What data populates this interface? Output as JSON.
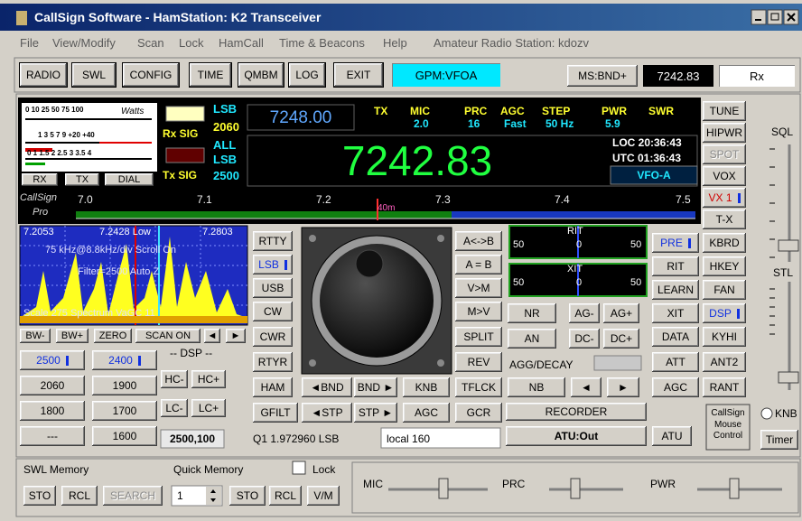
{
  "title": "CallSign Software - HamStation: K2 Transceiver",
  "menu": [
    "File",
    "View/Modify",
    "Scan",
    "Lock",
    "HamCall",
    "Time & Beacons",
    "Help"
  ],
  "station": "Amateur Radio Station: kdozv",
  "toolbar": {
    "buttons": [
      "RADIO",
      "SWL",
      "CONFIG",
      "TIME",
      "QMBM",
      "LOG",
      "EXIT"
    ],
    "vfo": "GPM:VFOA",
    "ms": "MS:BND+",
    "freq": "7242.83",
    "mode": "Rx"
  },
  "meter": {
    "scale1": "0 10 25 50 75 100",
    "unit": "Watts",
    "scale2": "1 3 5 7 9 +20 +40",
    "scale3": "0 1 1.5 2 2.5 3 3.5 4",
    "buttons": [
      "RX",
      "TX",
      "DIAL"
    ]
  },
  "signals": {
    "rx": "Rx SIG",
    "tx": "Tx SIG"
  },
  "filters": [
    "LSB",
    "2060",
    "ALL",
    "LSB",
    "2500"
  ],
  "sub_freq": "7248.00",
  "status": {
    "tx": "TX",
    "swr": "SWR",
    "items": [
      {
        "label": "MIC",
        "value": "2.0"
      },
      {
        "label": "PRC",
        "value": "16"
      },
      {
        "label": "AGC",
        "value": "Fast"
      },
      {
        "label": "STEP",
        "value": "50 Hz"
      },
      {
        "label": "PWR",
        "value": "5.9"
      }
    ]
  },
  "main_freq": "7242.83",
  "clock": {
    "loc": "LOC 20:36:43",
    "utc": "UTC 01:36:43",
    "vfo": "VFO-A"
  },
  "band": {
    "brand": [
      "CallSign",
      "Pro"
    ],
    "ticks": [
      "7.0",
      "7.1",
      "7.2",
      "7.3",
      "7.4",
      "7.5"
    ],
    "marker": "40m"
  },
  "spectrum": {
    "low": "7.2053",
    "center": "7.2428 Low",
    "high": "7.2803",
    "line1": "75 kHz@8.8kHz/div Scroll On",
    "line2": "Filter=2500 Auto Z",
    "line3": "Scale 275 Spectrum VaGC 11",
    "buttons": [
      "BW-",
      "BW+",
      "ZERO",
      "SCAN ON",
      "◄",
      "►"
    ]
  },
  "dsp": {
    "label": "-- DSP --",
    "filters": [
      "2500",
      "2400",
      "2060",
      "1900",
      "1800",
      "1700",
      "---",
      "1600"
    ],
    "setting": "2500,100",
    "shelves": [
      "HC-",
      "HC+",
      "LC-",
      "LC+"
    ]
  },
  "modes": [
    "RTTY",
    "LSB",
    "USB",
    "CW",
    "CWR",
    "RTYR",
    "HAM",
    "GFILT"
  ],
  "vfo_ops": [
    "A<->B",
    "A = B",
    "V>M",
    "M>V",
    "SPLIT",
    "REV",
    "TFLCK",
    "GCR"
  ],
  "band_ops": [
    "◄BND",
    "BND ►",
    "KNB",
    "◄STP",
    "STP ►",
    "AGC"
  ],
  "rit": {
    "label": "RIT",
    "left": "50",
    "center": "0",
    "right": "50"
  },
  "xit": {
    "label": "XIT",
    "left": "50",
    "center": "0",
    "right": "50"
  },
  "noise": [
    "NR",
    "AG-",
    "AG+",
    "AN",
    "DC-",
    "DC+"
  ],
  "agg": "AGG/DECAY",
  "nb": "NB",
  "nb_arrows": [
    "◄",
    "►"
  ],
  "recorder": "RECORDER",
  "atu_out": "ATU:Out",
  "atu": "ATU",
  "memory_line": "Q1 1.972960 LSB",
  "memory_name": "local 160",
  "col1": [
    "PRE",
    "RIT",
    "LEARN",
    "XIT",
    "DATA",
    "ATT",
    "AGC"
  ],
  "col2": [
    "TUNE",
    "HIPWR",
    "SPOT",
    "VOX",
    "VX 1",
    "T-X",
    "KBRD",
    "HKEY",
    "FAN",
    "DSP",
    "KYHI",
    "ANT2",
    "RANT"
  ],
  "mouse": "CallSign Mouse Control",
  "knb": "KNB",
  "timer": "Timer",
  "sliders": [
    "SQL",
    "STL"
  ],
  "bottom": {
    "swl": "SWL Memory",
    "quick": "Quick Memory",
    "lock": "Lock",
    "swl_buttons": [
      "STO",
      "RCL",
      "SEARCH"
    ],
    "channel": "1",
    "quick_buttons": [
      "STO",
      "RCL",
      "V/M"
    ],
    "levels": [
      "MIC",
      "PRC",
      "PWR"
    ]
  }
}
